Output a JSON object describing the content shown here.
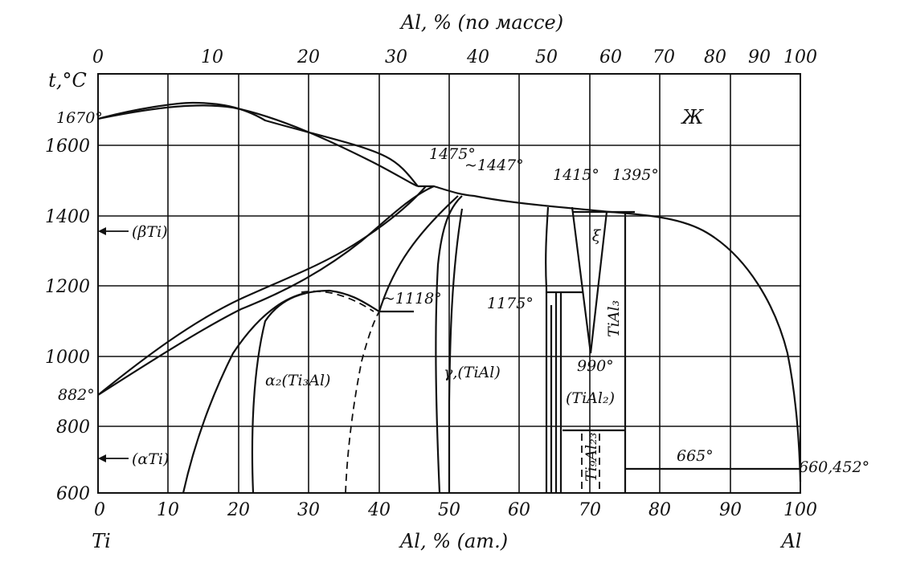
{
  "title_top": "Al, % (по массе)",
  "title_bottom": "Al, % (am.)",
  "y_axis_label": "t,°C",
  "top_ticks": [
    "0",
    "10",
    "20",
    "30",
    "40",
    "50",
    "60",
    "70",
    "80",
    "90",
    "100"
  ],
  "bottom_ticks": [
    "0",
    "10",
    "20",
    "30",
    "40",
    "50",
    "60",
    "70",
    "80",
    "90",
    "100"
  ],
  "y_ticks": [
    "600",
    "800",
    "1000",
    "1200",
    "1400",
    "1600"
  ],
  "element_left": "Ti",
  "element_right": "Al",
  "temperatures": {
    "t1670": "1670°",
    "t882": "882°",
    "t1475": "1475°",
    "t1447": "~1447°",
    "t1415": "1415°",
    "t1395": "1395°",
    "t1118": "~1118°",
    "t1175": "1175°",
    "t990": "990°",
    "t665": "665°",
    "t660": "660,452°"
  },
  "phases": {
    "liquid": "Ж",
    "beta_ti": "(βTi)",
    "alpha_ti": "(αTi)",
    "alpha2": "α₂(Ti₃Al)",
    "gamma": "γ,(TiAl)",
    "tial2": "(TiAl₂)",
    "ti3al": "Ti₉Al₂₃",
    "tial3": "TiAl₃",
    "xi": "ξ"
  },
  "chart_data": {
    "type": "line",
    "xlabel": "Al, % (am.)",
    "ylabel": "t,°C",
    "xlim": [
      0,
      100
    ],
    "ylim": [
      600,
      1700
    ],
    "series": [
      {
        "values": [
          [
            0,
            1670
          ],
          [
            8,
            1705
          ],
          [
            13,
            1710
          ],
          [
            20,
            1688
          ],
          [
            30,
            1640
          ],
          [
            40,
            1575
          ],
          [
            46,
            1478
          ]
        ]
      },
      {
        "values": [
          [
            0,
            1670
          ],
          [
            10,
            1700
          ],
          [
            20,
            1685
          ],
          [
            28,
            1640
          ],
          [
            35,
            1585
          ],
          [
            41,
            1532
          ],
          [
            46,
            1478
          ]
        ]
      },
      {
        "values": [
          [
            46,
            1478
          ],
          [
            49,
            1478
          ],
          [
            53,
            1456
          ],
          [
            58,
            1437
          ],
          [
            64,
            1425
          ],
          [
            72,
            1408
          ],
          [
            79,
            1398
          ],
          [
            86,
            1340
          ],
          [
            92,
            1230
          ],
          [
            96,
            1080
          ],
          [
            99,
            800
          ],
          [
            100,
            660
          ]
        ]
      },
      {
        "values": [
          [
            0,
            882
          ],
          [
            10,
            1010
          ],
          [
            20,
            1125
          ],
          [
            30,
            1215
          ],
          [
            40,
            1315
          ],
          [
            47,
            1478
          ]
        ]
      },
      {
        "values": [
          [
            0,
            882
          ],
          [
            10,
            990
          ],
          [
            20,
            1110
          ],
          [
            27,
            1175
          ],
          [
            35,
            1280
          ],
          [
            43,
            1432
          ],
          [
            49,
            1478
          ]
        ]
      },
      {
        "values": [
          [
            12,
            600
          ],
          [
            15,
            820
          ],
          [
            20,
            1010
          ],
          [
            25,
            1120
          ],
          [
            30,
            1168
          ]
        ]
      },
      {
        "values": [
          [
            22,
            600
          ],
          [
            22.5,
            900
          ],
          [
            25,
            1100
          ],
          [
            31,
            1178
          ],
          [
            37,
            1160
          ],
          [
            40,
            1125
          ]
        ]
      },
      {
        "values": [
          [
            40,
            1125
          ],
          [
            42,
            1240
          ],
          [
            46,
            1370
          ],
          [
            49,
            1435
          ],
          [
            53,
            1457
          ]
        ]
      },
      {
        "values": [
          [
            48,
            600
          ],
          [
            47.5,
            900
          ],
          [
            48.2,
            1250
          ],
          [
            50,
            1395
          ],
          [
            53,
            1457
          ]
        ]
      },
      {
        "values": [
          [
            50,
            600
          ],
          [
            50,
            800
          ],
          [
            51,
            1200
          ],
          [
            52,
            1400
          ],
          [
            54,
            1457
          ]
        ]
      },
      {
        "values": [
          [
            64,
            600
          ],
          [
            64,
            1100
          ],
          [
            63.5,
            1300
          ],
          [
            64,
            1422
          ]
        ]
      },
      {
        "values": [
          [
            65,
            600
          ],
          [
            65,
            1178
          ]
        ]
      },
      {
        "values": [
          [
            66,
            600
          ],
          [
            66,
            1178
          ]
        ]
      },
      {
        "values": [
          [
            67,
            1422
          ],
          [
            70.5,
            1000
          ],
          [
            72.5,
            1412
          ]
        ]
      },
      {
        "values": [
          [
            75,
            600
          ],
          [
            75,
            1400
          ]
        ]
      },
      {
        "values": [
          [
            75,
            665
          ],
          [
            100,
            665
          ]
        ]
      },
      {
        "values": [
          [
            40,
            1125
          ],
          [
            45,
            1125
          ]
        ]
      },
      {
        "values": [
          [
            64,
            1178
          ],
          [
            68.5,
            1178
          ]
        ]
      }
    ]
  }
}
